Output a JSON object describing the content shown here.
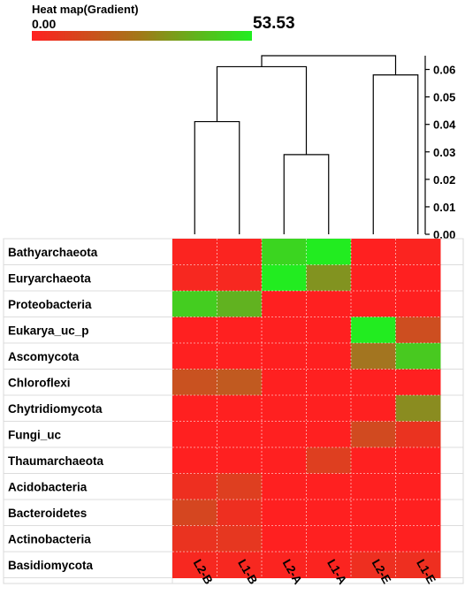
{
  "legend": {
    "title": "Heat map(Gradient)",
    "min_label": "0.00",
    "max_label": "53.53",
    "min": 0,
    "max": 53.53,
    "color_low": "#ff2020",
    "color_high": "#20ee20"
  },
  "chart_data": {
    "type": "heatmap",
    "rows": [
      "Bathyarchaeota",
      "Euryarchaeota",
      "Proteobacteria",
      "Eukarya_uc_p",
      "Ascomycota",
      "Chloroflexi",
      "Chytridiomycota",
      "Fungi_uc",
      "Thaumarchaeota",
      "Acidobacteria",
      "Bacteroidetes",
      "Actinobacteria",
      "Basidiomycota"
    ],
    "columns": [
      "L2-B",
      "L1-B",
      "L2-A",
      "L1-A",
      "L2-E",
      "L1-E"
    ],
    "values": [
      [
        1,
        1,
        47,
        53,
        0,
        1
      ],
      [
        2,
        2,
        53,
        30,
        0,
        0
      ],
      [
        45,
        38,
        0,
        0,
        0,
        0
      ],
      [
        0,
        0,
        0,
        0,
        53,
        12
      ],
      [
        0,
        0,
        0,
        0,
        22,
        44
      ],
      [
        13,
        15,
        0,
        0,
        0,
        0
      ],
      [
        0,
        0,
        0,
        0,
        0,
        28
      ],
      [
        0,
        0,
        0,
        0,
        11,
        5
      ],
      [
        0,
        0,
        0,
        8,
        0,
        0
      ],
      [
        4,
        8,
        0,
        0,
        0,
        0
      ],
      [
        10,
        4,
        0,
        0,
        0,
        0
      ],
      [
        5,
        6,
        0,
        0,
        0,
        0
      ],
      [
        2,
        2,
        1,
        1,
        4,
        4
      ]
    ],
    "dendrogram_axis": {
      "ticks": [
        "0.00",
        "0.01",
        "0.02",
        "0.03",
        "0.04",
        "0.05",
        "0.06"
      ],
      "min": 0,
      "max": 0.065
    },
    "dendrogram": [
      {
        "left": "L2-B",
        "right": "L1-B",
        "height": 0.041
      },
      {
        "left": "L2-A",
        "right": "L1-A",
        "height": 0.029
      },
      {
        "left": "L2-E",
        "right": "L1-E",
        "height": 0.058
      },
      {
        "left": "L2-B|L1-B",
        "right": "L2-A|L1-A",
        "height": 0.061
      },
      {
        "left": "L2-B|L1-B|L2-A|L1-A",
        "right": "L2-E|L1-E",
        "height": 0.065
      }
    ]
  }
}
